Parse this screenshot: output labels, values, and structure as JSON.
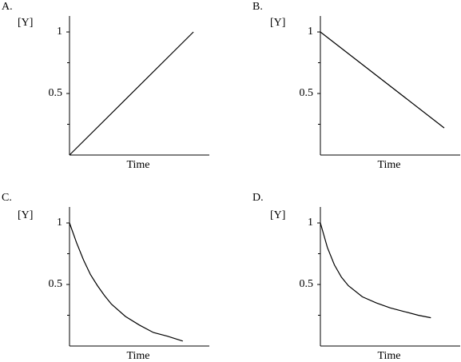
{
  "chart_data": [
    {
      "type": "line",
      "label": "A.",
      "ylabel": "[Y]",
      "xlabel": "Time",
      "x": [
        0,
        0.886
      ],
      "values": [
        0,
        1
      ],
      "color": "#000000",
      "xlim": [
        0,
        1
      ],
      "ylim": [
        0,
        1.13
      ],
      "yticks": [
        0.5,
        1
      ],
      "minor_yticks": [
        0.25,
        0.75
      ]
    },
    {
      "type": "line",
      "label": "B.",
      "ylabel": "[Y]",
      "xlabel": "Time",
      "x": [
        0,
        0.886
      ],
      "values": [
        1,
        0.22
      ],
      "color": "#000000",
      "xlim": [
        0,
        1
      ],
      "ylim": [
        0,
        1.13
      ],
      "yticks": [
        0.5,
        1
      ],
      "minor_yticks": [
        0.25,
        0.75
      ]
    },
    {
      "type": "line",
      "label": "C.",
      "ylabel": "[Y]",
      "xlabel": "Time",
      "x": [
        0,
        0.05,
        0.1,
        0.15,
        0.2,
        0.25,
        0.3,
        0.4,
        0.5,
        0.6,
        0.7,
        0.81
      ],
      "values": [
        1,
        0.84,
        0.7,
        0.58,
        0.49,
        0.41,
        0.34,
        0.24,
        0.17,
        0.11,
        0.08,
        0.04
      ],
      "color": "#000000",
      "xlim": [
        0,
        1
      ],
      "ylim": [
        0,
        1.13
      ],
      "yticks": [
        0.5,
        1
      ],
      "minor_yticks": [
        0.25,
        0.75
      ]
    },
    {
      "type": "line",
      "label": "D.",
      "ylabel": "[Y]",
      "xlabel": "Time",
      "x": [
        0,
        0.05,
        0.1,
        0.15,
        0.2,
        0.3,
        0.4,
        0.5,
        0.6,
        0.7,
        0.79
      ],
      "values": [
        1,
        0.8,
        0.66,
        0.56,
        0.49,
        0.4,
        0.35,
        0.31,
        0.28,
        0.25,
        0.23
      ],
      "color": "#000000",
      "xlim": [
        0,
        1
      ],
      "ylim": [
        0,
        1.13
      ],
      "yticks": [
        0.5,
        1
      ],
      "minor_yticks": [
        0.25,
        0.75
      ]
    }
  ]
}
